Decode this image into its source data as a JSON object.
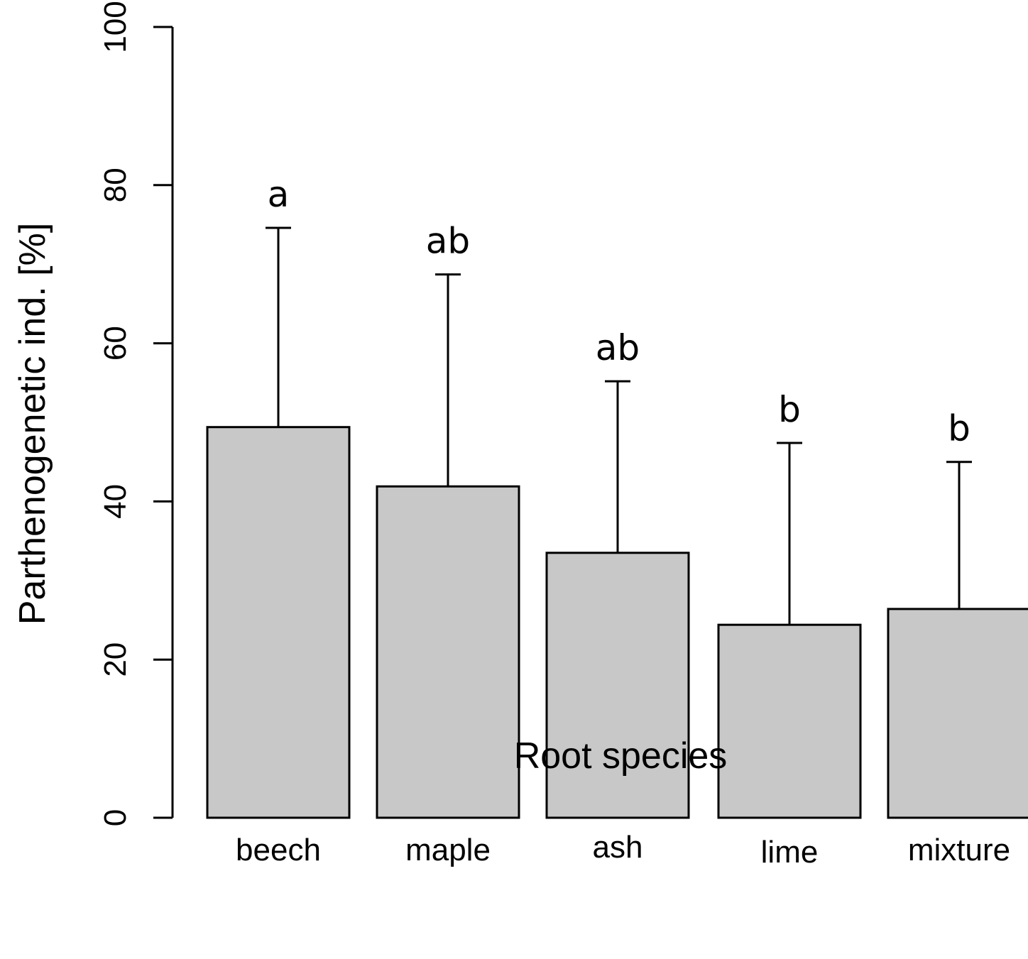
{
  "chart_data": {
    "type": "bar",
    "title": "",
    "xlabel": "Root species",
    "ylabel": "Parthenogenetic ind. [%]",
    "ylim": [
      0,
      100
    ],
    "yticks": [
      0,
      20,
      40,
      60,
      80,
      100
    ],
    "ytick_labels": [
      "0",
      "20",
      "40",
      "60",
      "80",
      "100"
    ],
    "categories": [
      "beech",
      "maple",
      "ash",
      "lime",
      "mixture"
    ],
    "values": [
      49.4,
      41.9,
      33.5,
      24.4,
      26.4
    ],
    "error_upper": [
      74.6,
      68.7,
      55.2,
      47.4,
      45.0
    ],
    "significance_letters": [
      "a",
      "ab",
      "ab",
      "b",
      "b"
    ],
    "grid": false,
    "legend": false,
    "colors": {
      "bar_fill": "#c8c8c8",
      "bar_stroke": "#000000",
      "axis": "#000000"
    }
  }
}
